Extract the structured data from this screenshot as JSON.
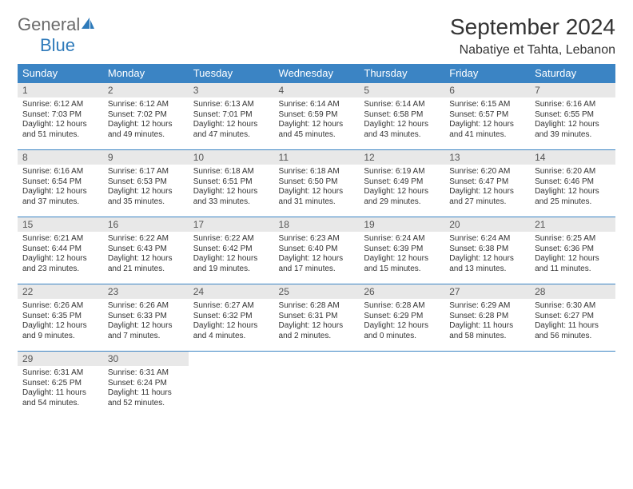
{
  "logo": {
    "general": "General",
    "blue": "Blue"
  },
  "title": "September 2024",
  "location": "Nabatiye et Tahta, Lebanon",
  "colors": {
    "header_bg": "#3b84c4",
    "header_text": "#ffffff",
    "daynum_bg": "#e8e8e8",
    "border": "#3b84c4",
    "logo_gray": "#6a6a6a",
    "logo_blue": "#2e7aba"
  },
  "weekdays": [
    "Sunday",
    "Monday",
    "Tuesday",
    "Wednesday",
    "Thursday",
    "Friday",
    "Saturday"
  ],
  "weeks": [
    [
      {
        "n": "1",
        "sr": "Sunrise: 6:12 AM",
        "ss": "Sunset: 7:03 PM",
        "dl1": "Daylight: 12 hours",
        "dl2": "and 51 minutes."
      },
      {
        "n": "2",
        "sr": "Sunrise: 6:12 AM",
        "ss": "Sunset: 7:02 PM",
        "dl1": "Daylight: 12 hours",
        "dl2": "and 49 minutes."
      },
      {
        "n": "3",
        "sr": "Sunrise: 6:13 AM",
        "ss": "Sunset: 7:01 PM",
        "dl1": "Daylight: 12 hours",
        "dl2": "and 47 minutes."
      },
      {
        "n": "4",
        "sr": "Sunrise: 6:14 AM",
        "ss": "Sunset: 6:59 PM",
        "dl1": "Daylight: 12 hours",
        "dl2": "and 45 minutes."
      },
      {
        "n": "5",
        "sr": "Sunrise: 6:14 AM",
        "ss": "Sunset: 6:58 PM",
        "dl1": "Daylight: 12 hours",
        "dl2": "and 43 minutes."
      },
      {
        "n": "6",
        "sr": "Sunrise: 6:15 AM",
        "ss": "Sunset: 6:57 PM",
        "dl1": "Daylight: 12 hours",
        "dl2": "and 41 minutes."
      },
      {
        "n": "7",
        "sr": "Sunrise: 6:16 AM",
        "ss": "Sunset: 6:55 PM",
        "dl1": "Daylight: 12 hours",
        "dl2": "and 39 minutes."
      }
    ],
    [
      {
        "n": "8",
        "sr": "Sunrise: 6:16 AM",
        "ss": "Sunset: 6:54 PM",
        "dl1": "Daylight: 12 hours",
        "dl2": "and 37 minutes."
      },
      {
        "n": "9",
        "sr": "Sunrise: 6:17 AM",
        "ss": "Sunset: 6:53 PM",
        "dl1": "Daylight: 12 hours",
        "dl2": "and 35 minutes."
      },
      {
        "n": "10",
        "sr": "Sunrise: 6:18 AM",
        "ss": "Sunset: 6:51 PM",
        "dl1": "Daylight: 12 hours",
        "dl2": "and 33 minutes."
      },
      {
        "n": "11",
        "sr": "Sunrise: 6:18 AM",
        "ss": "Sunset: 6:50 PM",
        "dl1": "Daylight: 12 hours",
        "dl2": "and 31 minutes."
      },
      {
        "n": "12",
        "sr": "Sunrise: 6:19 AM",
        "ss": "Sunset: 6:49 PM",
        "dl1": "Daylight: 12 hours",
        "dl2": "and 29 minutes."
      },
      {
        "n": "13",
        "sr": "Sunrise: 6:20 AM",
        "ss": "Sunset: 6:47 PM",
        "dl1": "Daylight: 12 hours",
        "dl2": "and 27 minutes."
      },
      {
        "n": "14",
        "sr": "Sunrise: 6:20 AM",
        "ss": "Sunset: 6:46 PM",
        "dl1": "Daylight: 12 hours",
        "dl2": "and 25 minutes."
      }
    ],
    [
      {
        "n": "15",
        "sr": "Sunrise: 6:21 AM",
        "ss": "Sunset: 6:44 PM",
        "dl1": "Daylight: 12 hours",
        "dl2": "and 23 minutes."
      },
      {
        "n": "16",
        "sr": "Sunrise: 6:22 AM",
        "ss": "Sunset: 6:43 PM",
        "dl1": "Daylight: 12 hours",
        "dl2": "and 21 minutes."
      },
      {
        "n": "17",
        "sr": "Sunrise: 6:22 AM",
        "ss": "Sunset: 6:42 PM",
        "dl1": "Daylight: 12 hours",
        "dl2": "and 19 minutes."
      },
      {
        "n": "18",
        "sr": "Sunrise: 6:23 AM",
        "ss": "Sunset: 6:40 PM",
        "dl1": "Daylight: 12 hours",
        "dl2": "and 17 minutes."
      },
      {
        "n": "19",
        "sr": "Sunrise: 6:24 AM",
        "ss": "Sunset: 6:39 PM",
        "dl1": "Daylight: 12 hours",
        "dl2": "and 15 minutes."
      },
      {
        "n": "20",
        "sr": "Sunrise: 6:24 AM",
        "ss": "Sunset: 6:38 PM",
        "dl1": "Daylight: 12 hours",
        "dl2": "and 13 minutes."
      },
      {
        "n": "21",
        "sr": "Sunrise: 6:25 AM",
        "ss": "Sunset: 6:36 PM",
        "dl1": "Daylight: 12 hours",
        "dl2": "and 11 minutes."
      }
    ],
    [
      {
        "n": "22",
        "sr": "Sunrise: 6:26 AM",
        "ss": "Sunset: 6:35 PM",
        "dl1": "Daylight: 12 hours",
        "dl2": "and 9 minutes."
      },
      {
        "n": "23",
        "sr": "Sunrise: 6:26 AM",
        "ss": "Sunset: 6:33 PM",
        "dl1": "Daylight: 12 hours",
        "dl2": "and 7 minutes."
      },
      {
        "n": "24",
        "sr": "Sunrise: 6:27 AM",
        "ss": "Sunset: 6:32 PM",
        "dl1": "Daylight: 12 hours",
        "dl2": "and 4 minutes."
      },
      {
        "n": "25",
        "sr": "Sunrise: 6:28 AM",
        "ss": "Sunset: 6:31 PM",
        "dl1": "Daylight: 12 hours",
        "dl2": "and 2 minutes."
      },
      {
        "n": "26",
        "sr": "Sunrise: 6:28 AM",
        "ss": "Sunset: 6:29 PM",
        "dl1": "Daylight: 12 hours",
        "dl2": "and 0 minutes."
      },
      {
        "n": "27",
        "sr": "Sunrise: 6:29 AM",
        "ss": "Sunset: 6:28 PM",
        "dl1": "Daylight: 11 hours",
        "dl2": "and 58 minutes."
      },
      {
        "n": "28",
        "sr": "Sunrise: 6:30 AM",
        "ss": "Sunset: 6:27 PM",
        "dl1": "Daylight: 11 hours",
        "dl2": "and 56 minutes."
      }
    ],
    [
      {
        "n": "29",
        "sr": "Sunrise: 6:31 AM",
        "ss": "Sunset: 6:25 PM",
        "dl1": "Daylight: 11 hours",
        "dl2": "and 54 minutes."
      },
      {
        "n": "30",
        "sr": "Sunrise: 6:31 AM",
        "ss": "Sunset: 6:24 PM",
        "dl1": "Daylight: 11 hours",
        "dl2": "and 52 minutes."
      },
      {
        "empty": true
      },
      {
        "empty": true
      },
      {
        "empty": true
      },
      {
        "empty": true
      },
      {
        "empty": true
      }
    ]
  ]
}
